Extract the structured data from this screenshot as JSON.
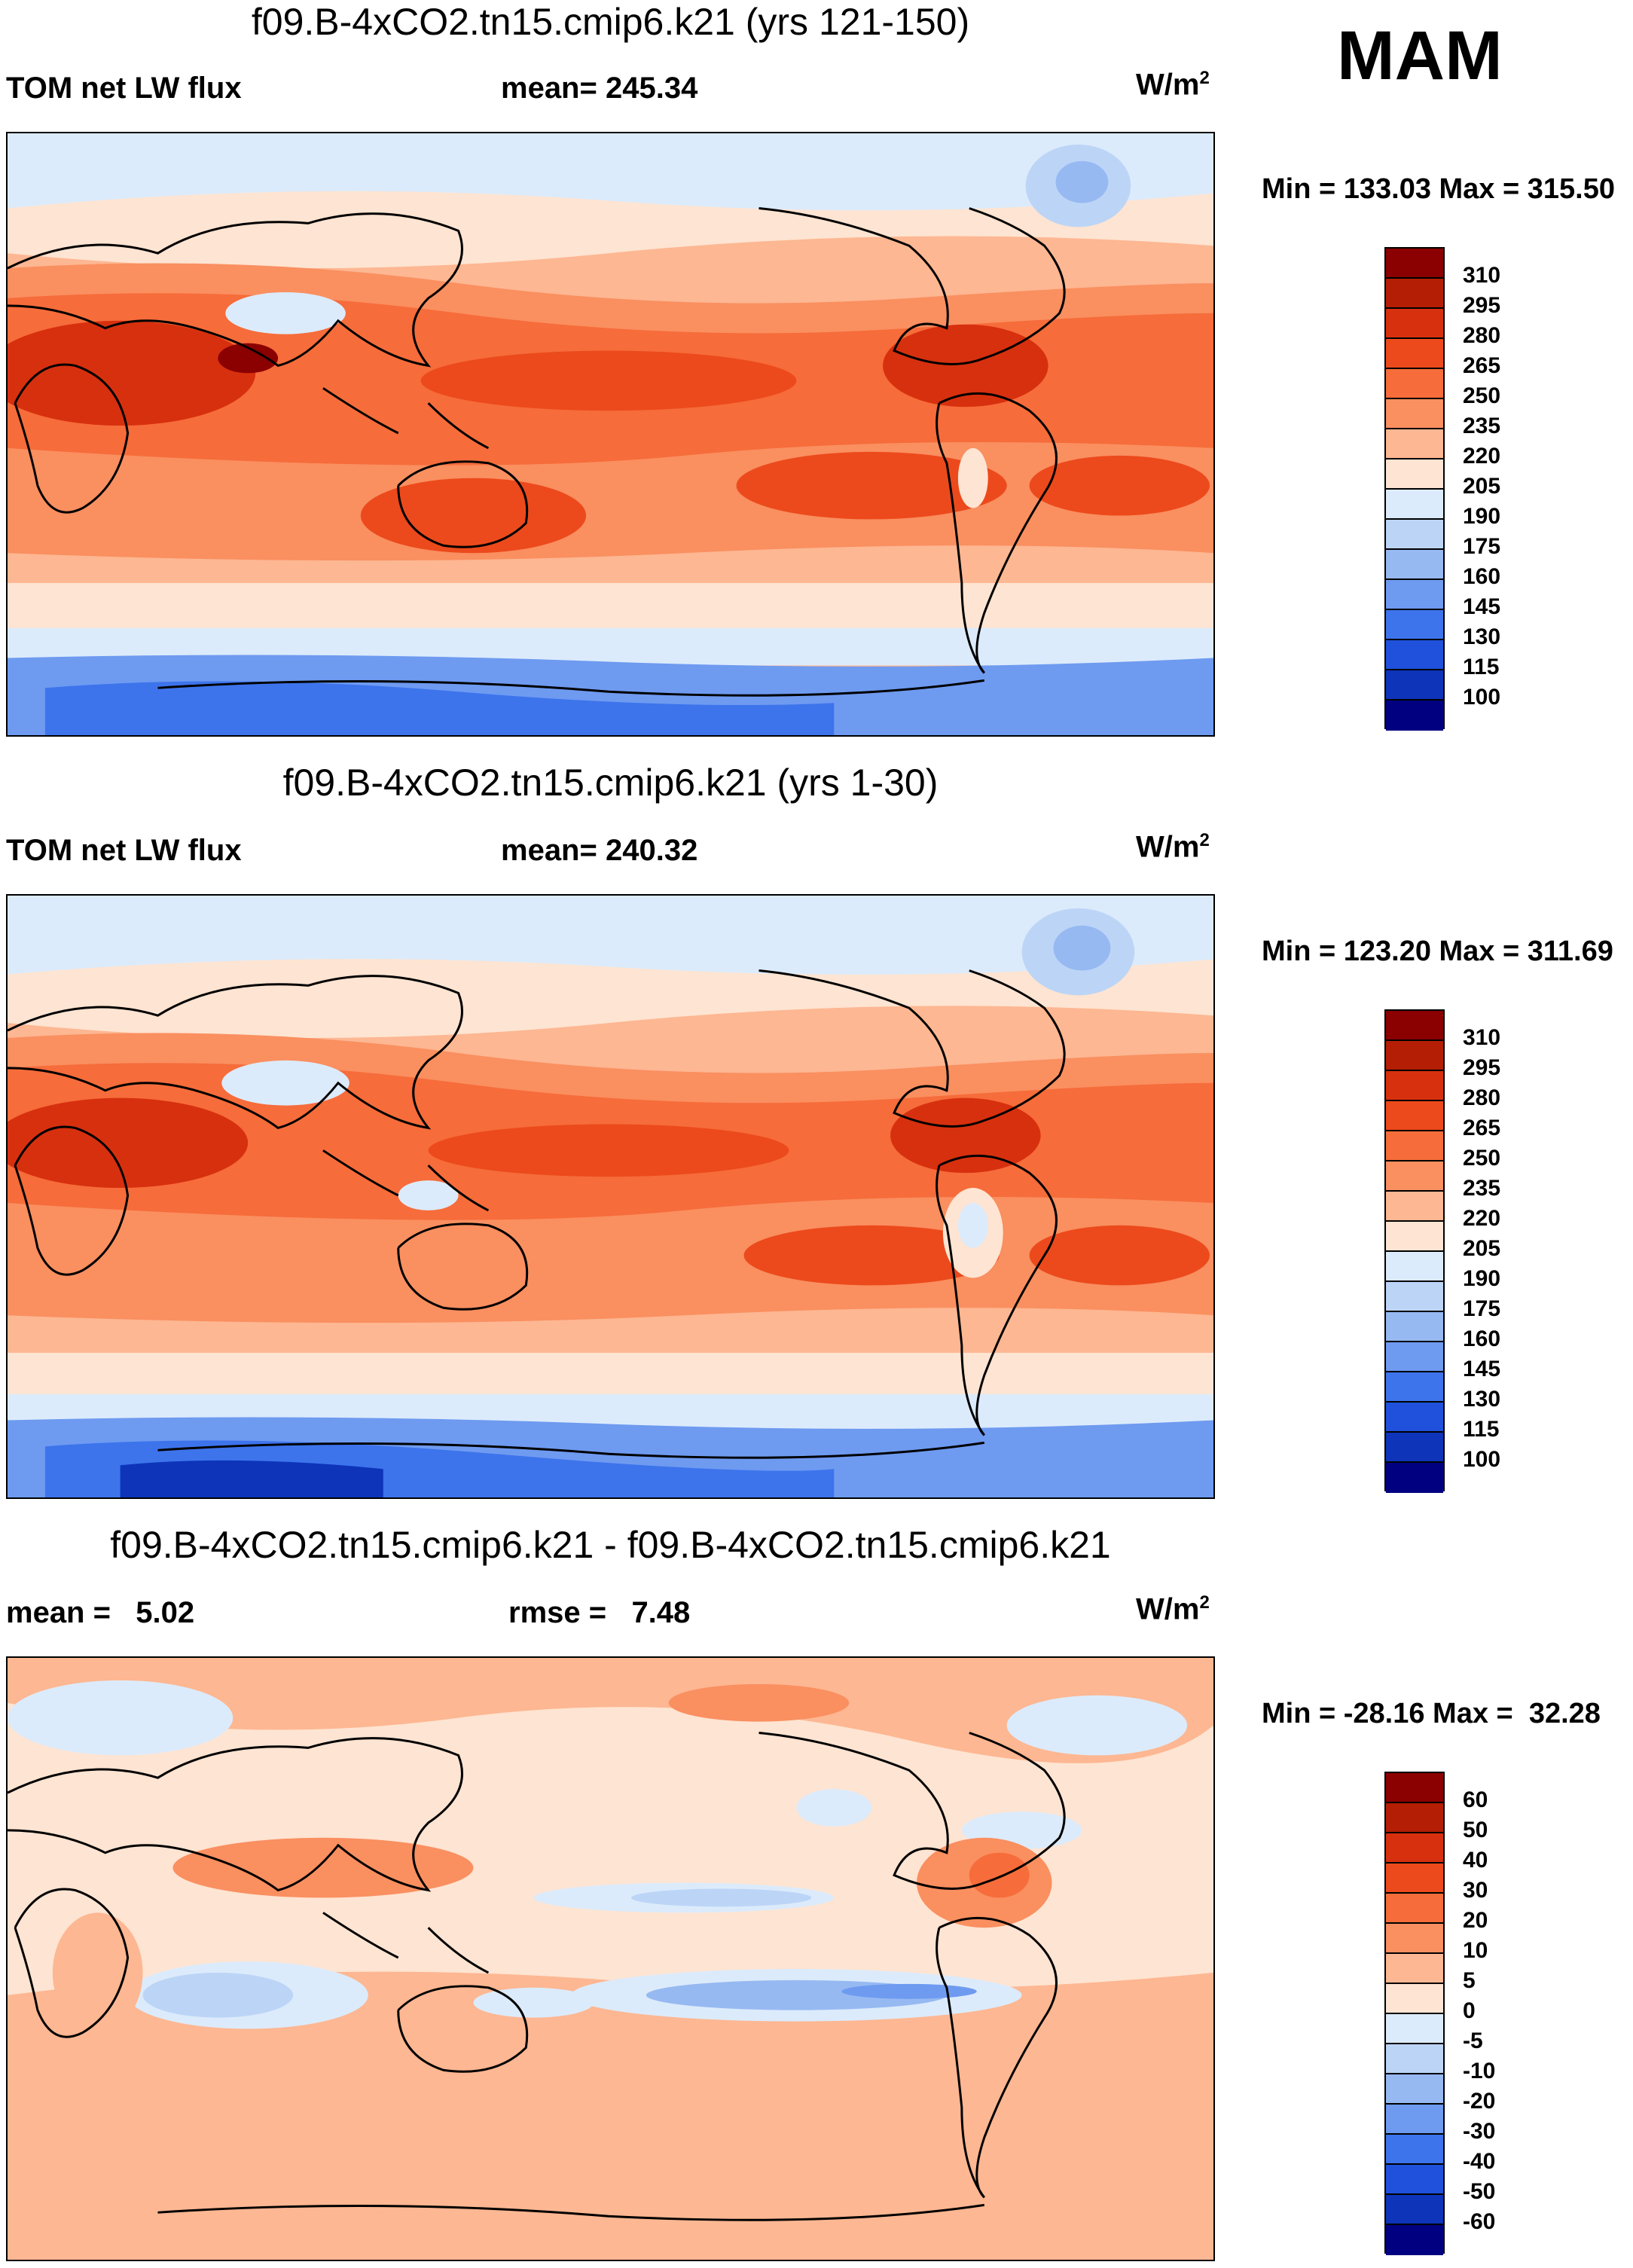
{
  "season": "MAM",
  "panels": [
    {
      "title": "f09.B-4xCO2.tn15.cmip6.k21 (yrs 121-150)",
      "left_label": "TOM net LW flux",
      "center_label": "mean= 245.34",
      "units": "W/m",
      "units_sup": "2",
      "minmax": "Min = 133.03 Max = 315.50",
      "colorbar_labels": [
        "310",
        "295",
        "280",
        "265",
        "250",
        "235",
        "220",
        "205",
        "190",
        "175",
        "160",
        "145",
        "130",
        "115",
        "100"
      ],
      "colorbar_colors": [
        "#8b0000",
        "#b31e05",
        "#d7300f",
        "#ec4a1c",
        "#f66c3a",
        "#fa8f60",
        "#fdb792",
        "#fee4d2",
        "#dcebfb",
        "#bcd5f7",
        "#97b9f2",
        "#6e9af0",
        "#3d74ec",
        "#1f51dc",
        "#0d34b9",
        "#000080"
      ]
    },
    {
      "title": "f09.B-4xCO2.tn15.cmip6.k21 (yrs 1-30)",
      "left_label": "TOM net LW flux",
      "center_label": "mean= 240.32",
      "units": "W/m",
      "units_sup": "2",
      "minmax": "Min = 123.20 Max = 311.69",
      "colorbar_labels": [
        "310",
        "295",
        "280",
        "265",
        "250",
        "235",
        "220",
        "205",
        "190",
        "175",
        "160",
        "145",
        "130",
        "115",
        "100"
      ],
      "colorbar_colors": [
        "#8b0000",
        "#b31e05",
        "#d7300f",
        "#ec4a1c",
        "#f66c3a",
        "#fa8f60",
        "#fdb792",
        "#fee4d2",
        "#dcebfb",
        "#bcd5f7",
        "#97b9f2",
        "#6e9af0",
        "#3d74ec",
        "#1f51dc",
        "#0d34b9",
        "#000080"
      ]
    },
    {
      "title": "f09.B-4xCO2.tn15.cmip6.k21 - f09.B-4xCO2.tn15.cmip6.k21",
      "left_label": "mean =   5.02",
      "center_label": "rmse =   7.48",
      "units": "W/m",
      "units_sup": "2",
      "minmax": "Min = -28.16 Max =  32.28",
      "colorbar_labels": [
        "60",
        "50",
        "40",
        "30",
        "20",
        "10",
        "5",
        "0",
        "-5",
        "-10",
        "-20",
        "-30",
        "-40",
        "-50",
        "-60"
      ],
      "colorbar_colors": [
        "#8b0000",
        "#b31e05",
        "#d7300f",
        "#ec4a1c",
        "#f66c3a",
        "#fa8f60",
        "#fdb792",
        "#fee4d2",
        "#dcebfb",
        "#bcd5f7",
        "#97b9f2",
        "#6e9af0",
        "#3d74ec",
        "#1f51dc",
        "#0d34b9",
        "#000080"
      ]
    }
  ]
}
